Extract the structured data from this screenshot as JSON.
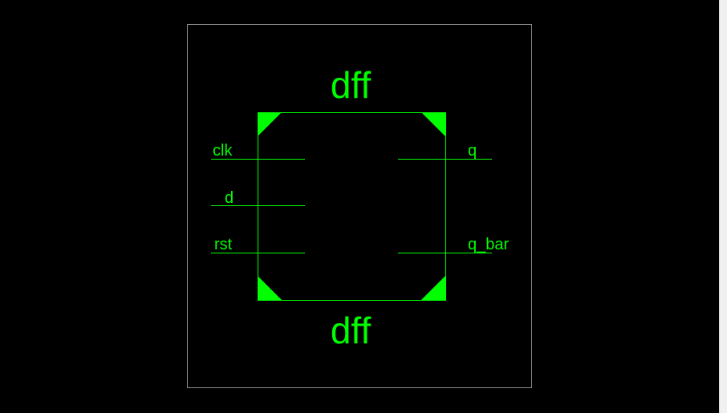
{
  "symbol": {
    "instance_name": "dff",
    "module_name": "dff",
    "input_ports": [
      "clk",
      "d",
      "rst"
    ],
    "output_ports": [
      "q",
      "q_bar"
    ]
  },
  "colors": {
    "background": "#000000",
    "symbol_stroke": "#00ff00",
    "frame_stroke": "#8a8a8a"
  }
}
